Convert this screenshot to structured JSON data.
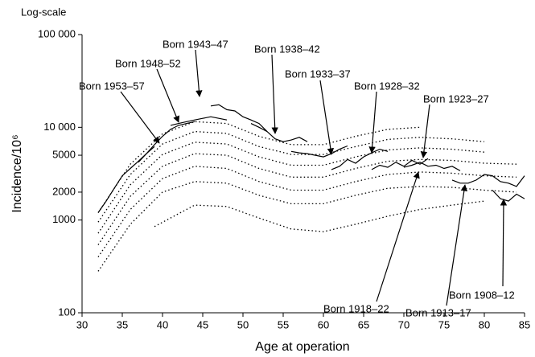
{
  "chart_data": {
    "type": "line",
    "corner_label": "Log-scale",
    "xlabel": "Age at operation",
    "ylabel": "Incidence/10⁶",
    "log_y": true,
    "xlim": [
      30,
      85
    ],
    "xticks": [
      30,
      35,
      40,
      45,
      50,
      55,
      60,
      65,
      70,
      75,
      80,
      85
    ],
    "ylim": [
      100,
      100000
    ],
    "yticks": [
      100,
      1000,
      2000,
      5000,
      {
        "value": 10000,
        "label": "10 000"
      },
      {
        "value": 100000,
        "label": "100 000"
      }
    ],
    "series": [
      {
        "name": "Born 1953–57",
        "style": "solid",
        "color": "#000000",
        "x": [
          32,
          33,
          34,
          35,
          36,
          37,
          38,
          39
        ],
        "values": [
          1200,
          1600,
          2200,
          3000,
          3600,
          4300,
          5200,
          6200
        ]
      },
      {
        "name": "Born 1948–52",
        "style": "solid",
        "color": "#000000",
        "x": [
          37,
          38,
          39,
          40,
          41,
          42,
          43,
          44
        ],
        "values": [
          4200,
          5200,
          6500,
          8000,
          9500,
          10500,
          11000,
          11500
        ]
      },
      {
        "name": "Born 1943–47",
        "style": "solid",
        "color": "#000000",
        "x": [
          41,
          42,
          43,
          44,
          45,
          46,
          47,
          48
        ],
        "values": [
          10500,
          11000,
          11500,
          12000,
          12500,
          13000,
          12500,
          12000
        ]
      },
      {
        "name": "Born 1938–42",
        "style": "solid",
        "color": "#000000",
        "x": [
          46,
          47,
          48,
          49,
          50,
          51,
          52,
          53
        ],
        "values": [
          17000,
          17500,
          15500,
          15000,
          13000,
          12000,
          11000,
          9000
        ]
      },
      {
        "name": "Born 1933–37",
        "style": "solid",
        "color": "#000000",
        "x": [
          51,
          52,
          53,
          54,
          55,
          56,
          57,
          58
        ],
        "values": [
          11000,
          10000,
          9000,
          7500,
          7000,
          7300,
          7800,
          7000
        ]
      },
      {
        "name": "Born 1928–32",
        "style": "solid",
        "color": "#000000",
        "x": [
          56,
          57,
          58,
          59,
          60,
          61,
          62,
          63
        ],
        "values": [
          5500,
          5300,
          5200,
          5000,
          4800,
          5200,
          5800,
          6300
        ]
      },
      {
        "name": "Born 1923–27",
        "style": "solid",
        "color": "#000000",
        "x": [
          61,
          62,
          63,
          64,
          65,
          66,
          67,
          68
        ],
        "values": [
          3500,
          3800,
          4500,
          4100,
          4800,
          5300,
          5800,
          5500
        ]
      },
      {
        "name": "Born 1918–22",
        "style": "solid",
        "color": "#000000",
        "x": [
          66,
          67,
          68,
          69,
          70,
          71,
          72,
          73
        ],
        "values": [
          3500,
          3900,
          3700,
          4200,
          3800,
          4400,
          4000,
          4600
        ]
      },
      {
        "name": "Born 1913–17",
        "style": "solid",
        "color": "#000000",
        "x": [
          70,
          71,
          72,
          73,
          74,
          75,
          76,
          77
        ],
        "values": [
          3700,
          3900,
          4200,
          3800,
          3900,
          3600,
          3800,
          3400
        ]
      },
      {
        "name": "Born 1908–12",
        "style": "solid",
        "color": "#000000",
        "x": [
          76,
          77,
          78,
          79,
          80,
          81,
          82,
          83,
          84,
          85
        ],
        "values": [
          2700,
          2500,
          2500,
          2700,
          3100,
          3000,
          2600,
          2500,
          2300,
          3000
        ]
      },
      {
        "style": "solid",
        "color": "#000000",
        "x": [
          81,
          82,
          83,
          84,
          85
        ],
        "values": [
          2100,
          1700,
          1600,
          1900,
          1700
        ]
      },
      {
        "style": "dotted",
        "color": "#000000",
        "x": [
          32,
          36,
          40,
          44,
          48,
          52,
          56,
          60,
          64,
          68,
          72
        ],
        "values": [
          1200,
          4000,
          8500,
          11500,
          11000,
          8000,
          6500,
          6500,
          8000,
          9500,
          10000
        ]
      },
      {
        "style": "dotted",
        "color": "#000000",
        "x": [
          32,
          36,
          40,
          44,
          48,
          52,
          56,
          60,
          64,
          68,
          72,
          76,
          80
        ],
        "values": [
          950,
          3100,
          6600,
          9000,
          8600,
          6200,
          5100,
          5100,
          6200,
          7400,
          7800,
          7500,
          7000
        ]
      },
      {
        "style": "dotted",
        "color": "#000000",
        "x": [
          32,
          36,
          40,
          44,
          48,
          52,
          56,
          60,
          64,
          68,
          72,
          76,
          80
        ],
        "values": [
          720,
          2400,
          5100,
          6900,
          6600,
          4800,
          3900,
          3900,
          4800,
          5700,
          6000,
          5800,
          5400
        ]
      },
      {
        "style": "dotted",
        "color": "#000000",
        "x": [
          32,
          36,
          40,
          44,
          48,
          52,
          56,
          60,
          64,
          68,
          72,
          76,
          80,
          84
        ],
        "values": [
          540,
          1800,
          3800,
          5200,
          5000,
          3600,
          2900,
          2900,
          3600,
          4300,
          4500,
          4400,
          4100,
          4000
        ]
      },
      {
        "style": "dotted",
        "color": "#000000",
        "x": [
          32,
          36,
          40,
          44,
          48,
          52,
          56,
          60,
          64,
          68,
          72,
          76,
          80,
          84
        ],
        "values": [
          400,
          1300,
          2800,
          3800,
          3600,
          2600,
          2100,
          2100,
          2600,
          3100,
          3300,
          3200,
          3000,
          2900
        ]
      },
      {
        "style": "dotted",
        "color": "#000000",
        "x": [
          32,
          36,
          40,
          44,
          48,
          52,
          56,
          60,
          64,
          68,
          72,
          76,
          80,
          84
        ],
        "values": [
          280,
          900,
          2000,
          2600,
          2500,
          1850,
          1500,
          1500,
          1850,
          2200,
          2300,
          2250,
          2100,
          2000
        ]
      },
      {
        "style": "dotted",
        "color": "#000000",
        "x": [
          39,
          44,
          48,
          52,
          56,
          60,
          64,
          68,
          72,
          76,
          80
        ],
        "values": [
          850,
          1450,
          1400,
          1050,
          800,
          750,
          900,
          1100,
          1300,
          1450,
          1600
        ]
      }
    ]
  }
}
